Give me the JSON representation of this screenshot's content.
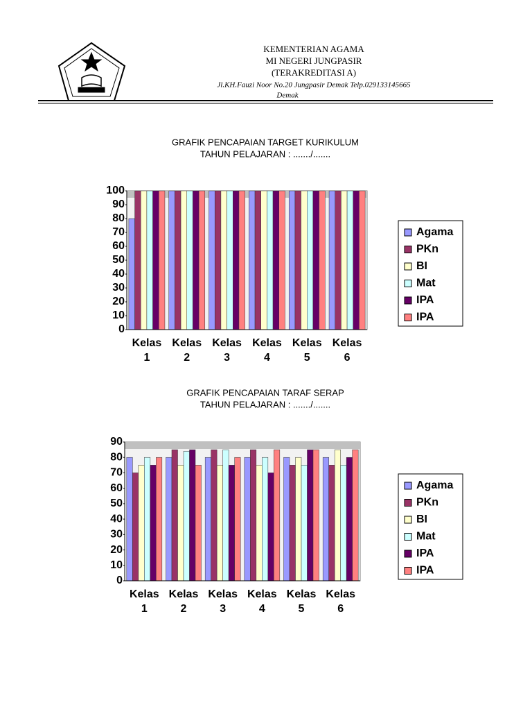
{
  "header": {
    "line1": "KEMENTERIAN AGAMA",
    "line2": "MI NEGERI JUNGPASIR",
    "line3": "(TERAKREDITASI A)",
    "address": "Jl.KH.Fauzi Noor No.20 Jungpasir Demak Telp.029133145665",
    "city": "Demak"
  },
  "chart_data": [
    {
      "type": "bar",
      "title": "GRAFIK PENCAPAIAN TARGET KURIKULUM",
      "subtitle": "TAHUN PELAJARAN : ......./.......",
      "categories": [
        "Kelas 1",
        "Kelas 2",
        "Kelas 3",
        "Kelas 4",
        "Kelas 5",
        "Kelas 6"
      ],
      "series": [
        {
          "name": "Agama",
          "color": "#9999ff",
          "values": [
            80,
            100,
            100,
            100,
            100,
            100
          ]
        },
        {
          "name": "PKn",
          "color": "#993366",
          "values": [
            100,
            100,
            100,
            100,
            100,
            100
          ]
        },
        {
          "name": "BI",
          "color": "#ffffcc",
          "values": [
            100,
            100,
            100,
            100,
            100,
            100
          ]
        },
        {
          "name": "Mat",
          "color": "#ccffff",
          "values": [
            100,
            100,
            100,
            100,
            100,
            100
          ]
        },
        {
          "name": "IPA",
          "color": "#660066",
          "values": [
            100,
            100,
            100,
            100,
            100,
            100
          ]
        },
        {
          "name": "IPA",
          "color": "#ff8080",
          "values": [
            100,
            100,
            100,
            100,
            100,
            100
          ]
        }
      ],
      "ylim": [
        0,
        100
      ],
      "yticks": [
        0,
        10,
        20,
        30,
        40,
        50,
        60,
        70,
        80,
        90,
        100
      ],
      "legend": "right"
    },
    {
      "type": "bar",
      "title": "GRAFIK PENCAPAIAN TARAF SERAP",
      "subtitle": "TAHUN PELAJARAN : ......./.......",
      "categories": [
        "Kelas 1",
        "Kelas 2",
        "Kelas 3",
        "Kelas 4",
        "Kelas 5",
        "Kelas 6"
      ],
      "series": [
        {
          "name": "Agama",
          "color": "#9999ff",
          "values": [
            80,
            80,
            80,
            80,
            80,
            80
          ]
        },
        {
          "name": "PKn",
          "color": "#993366",
          "values": [
            70,
            85,
            85,
            85,
            75,
            75
          ]
        },
        {
          "name": "BI",
          "color": "#ffffcc",
          "values": [
            75,
            75,
            75,
            75,
            80,
            85
          ]
        },
        {
          "name": "Mat",
          "color": "#ccffff",
          "values": [
            80,
            84,
            85,
            80,
            75,
            75
          ]
        },
        {
          "name": "IPA",
          "color": "#660066",
          "values": [
            75,
            85,
            75,
            70,
            85,
            80
          ]
        },
        {
          "name": "IPA",
          "color": "#ff8080",
          "values": [
            80,
            75,
            80,
            85,
            85,
            85
          ]
        }
      ],
      "ylim": [
        0,
        90
      ],
      "yticks": [
        0,
        10,
        20,
        30,
        40,
        50,
        60,
        70,
        80,
        90
      ],
      "legend": "right"
    }
  ]
}
